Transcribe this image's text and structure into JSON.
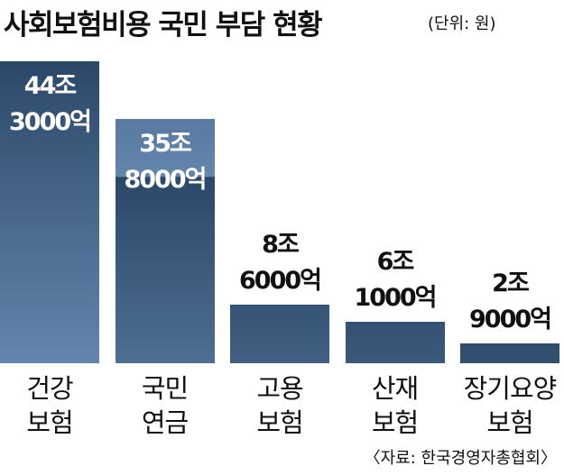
{
  "chart_data": {
    "type": "bar",
    "title": "사회보험비용 국민 부담 현황",
    "subtitle": "(단위: 원)",
    "categories": [
      "건강\n보험",
      "국민\n연금",
      "고용\n보험",
      "산재\n보험",
      "장기요양\n보험"
    ],
    "values": [
      44.3,
      35.8,
      8.6,
      6.1,
      2.9
    ],
    "value_labels": [
      "44조\n3000억",
      "35조\n8000억",
      "8조\n6000억",
      "6조\n1000억",
      "2조\n9000억"
    ],
    "colors": [
      "#2b4868",
      "#6486ad"
    ],
    "source": "〈자료: 한국경영자총협회〉"
  }
}
